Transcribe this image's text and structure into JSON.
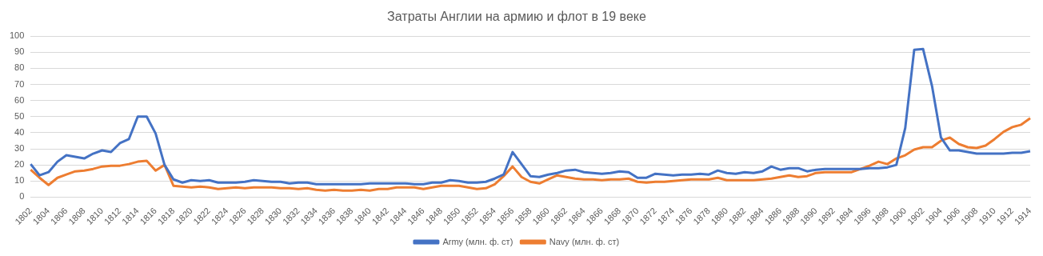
{
  "chart_data": {
    "type": "line",
    "title": "Затраты Англии на армию и флот в 19 веке",
    "categories": [
      "1802",
      null,
      "1804",
      null,
      "1806",
      null,
      "1808",
      null,
      "1810",
      null,
      "1812",
      null,
      "1814",
      null,
      "1816",
      null,
      "1818",
      null,
      "1820",
      null,
      "1822",
      null,
      "1824",
      null,
      "1826",
      null,
      "1828",
      null,
      "1830",
      null,
      "1832",
      null,
      "1834",
      null,
      "1836",
      null,
      "1838",
      null,
      "1840",
      null,
      "1842",
      null,
      "1844",
      null,
      "1846",
      null,
      "1848",
      null,
      "1850",
      null,
      "1852",
      null,
      "1854",
      null,
      "1856",
      null,
      "1858",
      null,
      "1860",
      null,
      "1862",
      null,
      "1864",
      null,
      "1866",
      null,
      "1868",
      null,
      "1870",
      null,
      "1872",
      null,
      "1874",
      null,
      "1876",
      null,
      "1878",
      null,
      "1880",
      null,
      "1882",
      null,
      "1884",
      null,
      "1886",
      null,
      "1888",
      null,
      "1890",
      null,
      "1892",
      null,
      "1894",
      null,
      "1896",
      null,
      "1898",
      null,
      "1900",
      null,
      "1902",
      null,
      "1904",
      null,
      "1906",
      null,
      "1908",
      null,
      "1910",
      null,
      "1912",
      null,
      "1914"
    ],
    "series": [
      {
        "name": "Army (млн. ф. ст)",
        "color": "#4472c4",
        "values": [
          20.5,
          13.5,
          15.5,
          22,
          26,
          25,
          24,
          27,
          29,
          28,
          33.5,
          36,
          50,
          50,
          39.5,
          20,
          11,
          9,
          10.5,
          10,
          10.5,
          9,
          9,
          9,
          9.5,
          10.5,
          10,
          9.5,
          9.5,
          8.5,
          9,
          9,
          8,
          8,
          8,
          8,
          8,
          8,
          8.5,
          8.5,
          8.5,
          8.5,
          8.5,
          8,
          8,
          9,
          9,
          10.5,
          10,
          9,
          9,
          9.5,
          11.5,
          14,
          28,
          20.5,
          13,
          12.5,
          14,
          15,
          16.5,
          17,
          15.5,
          15,
          14.5,
          15,
          16,
          15.5,
          12,
          12,
          14.5,
          14,
          13.5,
          14,
          14,
          14.5,
          14,
          16.5,
          15,
          14.5,
          15.5,
          15,
          16,
          19,
          17,
          18,
          18,
          16,
          17,
          17.5,
          17.5,
          17.5,
          17.5,
          17.5,
          18,
          18,
          18.5,
          20,
          43,
          91.5,
          92,
          69,
          37,
          29,
          29,
          28,
          27,
          27,
          27,
          27,
          27.5,
          27.5,
          28.5
        ]
      },
      {
        "name": "Navy (млн. ф. ст)",
        "color": "#ed7d31",
        "values": [
          17,
          12,
          7.5,
          12,
          14,
          16,
          16.5,
          17.5,
          19,
          19.5,
          19.5,
          20.5,
          22,
          22.5,
          16.5,
          20,
          7,
          6.5,
          6,
          6.5,
          6,
          5,
          5.5,
          6,
          5.5,
          6,
          6,
          6,
          5.5,
          5.5,
          5,
          5.5,
          4.5,
          4,
          4.5,
          4,
          4,
          4.5,
          4,
          5,
          5,
          6,
          6,
          6,
          5,
          6,
          7,
          7,
          7,
          6,
          5,
          5.5,
          8,
          13,
          19,
          12.5,
          9.5,
          8.5,
          11,
          13.5,
          12.5,
          11.5,
          11,
          11,
          10.5,
          11,
          11,
          11.5,
          9.5,
          9,
          9.5,
          9.5,
          10,
          10.5,
          11,
          11,
          11,
          12,
          10.5,
          10.5,
          10.5,
          10.5,
          11,
          11.5,
          12.5,
          13.5,
          12.5,
          13,
          15,
          15.5,
          15.5,
          15.5,
          15.5,
          17.5,
          19.5,
          22,
          20.5,
          24,
          26,
          29.5,
          31,
          31,
          35,
          37,
          33,
          31,
          30.5,
          32,
          36,
          40.5,
          43.5,
          45,
          49
        ]
      }
    ],
    "ylim": [
      0,
      100
    ],
    "yticks": [
      0,
      10,
      20,
      30,
      40,
      50,
      60,
      70,
      80,
      90,
      100
    ],
    "grid": "y",
    "legend": "bottom",
    "marker": "none",
    "line_style": "solid"
  }
}
